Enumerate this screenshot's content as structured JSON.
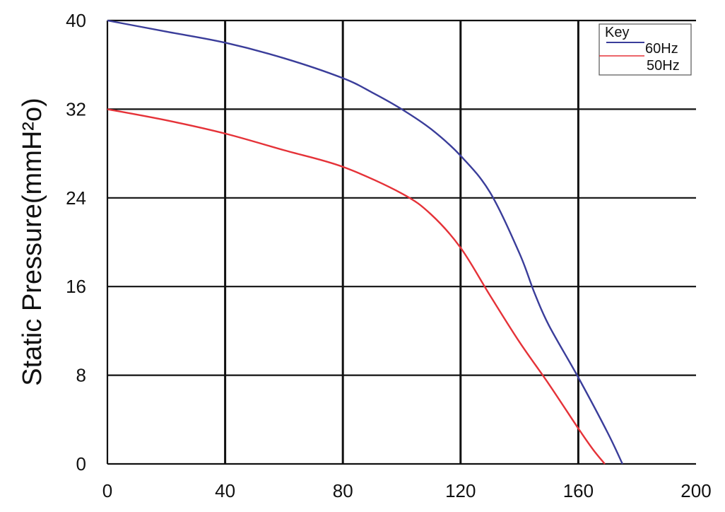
{
  "chart_data": {
    "type": "line",
    "ylabel": "Static Pressure(mmH²o)",
    "xlabel": "",
    "x_ticks": [
      0,
      40,
      80,
      120,
      160,
      200
    ],
    "y_ticks": [
      0,
      8,
      16,
      24,
      32,
      40
    ],
    "xlim": [
      0,
      200
    ],
    "ylim": [
      0,
      40
    ],
    "grid": true,
    "legend": {
      "title": "Key",
      "placement": "top-right"
    },
    "series": [
      {
        "name": "60Hz",
        "color": "#3a3d9a",
        "x": [
          0,
          20,
          40,
          60,
          80,
          90,
          100,
          110,
          120,
          130,
          140,
          145,
          150,
          160,
          170,
          175
        ],
        "y": [
          40,
          39,
          38,
          36.6,
          34.8,
          33.5,
          32,
          30.2,
          27.8,
          24.5,
          19,
          15.5,
          12.5,
          7.8,
          2.8,
          0
        ]
      },
      {
        "name": "50Hz",
        "color": "#e53238",
        "x": [
          0,
          20,
          40,
          60,
          80,
          100,
          110,
          120,
          130,
          140,
          150,
          160,
          165,
          169
        ],
        "y": [
          32,
          31,
          29.8,
          28.3,
          26.8,
          24.4,
          22.5,
          19.5,
          15.2,
          11,
          7.2,
          3.2,
          1.3,
          0
        ]
      }
    ]
  }
}
